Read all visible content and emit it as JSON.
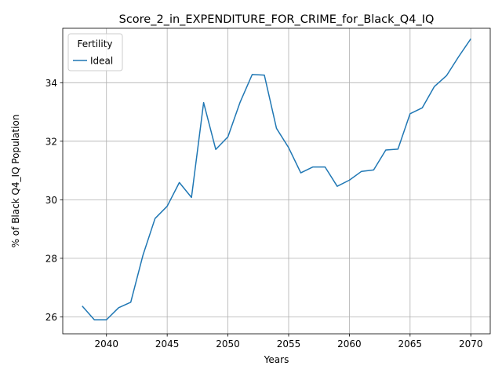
{
  "chart_data": {
    "type": "line",
    "title": "Score_2_in_EXPENDITURE_FOR_CRIME_for_Black_Q4_IQ",
    "xlabel": "Years",
    "ylabel": "% of Black Q4_IQ Population",
    "xlim": [
      2036.4,
      2071.6
    ],
    "ylim": [
      25.42,
      35.86
    ],
    "xticks": [
      2040,
      2045,
      2050,
      2055,
      2060,
      2065,
      2070
    ],
    "yticks": [
      26,
      28,
      30,
      32,
      34
    ],
    "grid": true,
    "legend": {
      "title": "Fertility",
      "placement": "top-left"
    },
    "series": [
      {
        "name": "Ideal",
        "color": "#1f77b4",
        "x": [
          2038,
          2039,
          2040,
          2041,
          2042,
          2043,
          2044,
          2045,
          2046,
          2047,
          2048,
          2049,
          2050,
          2051,
          2052,
          2053,
          2054,
          2055,
          2056,
          2057,
          2058,
          2059,
          2060,
          2061,
          2062,
          2063,
          2064,
          2065,
          2066,
          2067,
          2068,
          2069,
          2070
        ],
        "values": [
          26.37,
          25.9,
          25.9,
          26.31,
          26.5,
          28.1,
          29.36,
          29.78,
          30.59,
          30.08,
          33.32,
          31.72,
          32.15,
          33.33,
          34.28,
          34.26,
          32.44,
          31.78,
          30.92,
          31.12,
          31.12,
          30.46,
          30.67,
          30.97,
          31.02,
          31.7,
          31.73,
          32.94,
          33.14,
          33.87,
          34.24,
          34.89,
          35.5
        ]
      }
    ]
  }
}
